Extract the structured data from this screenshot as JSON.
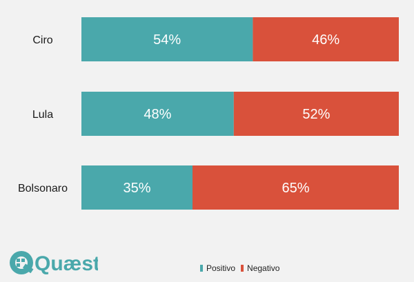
{
  "chart_data": {
    "type": "bar",
    "orientation": "horizontal",
    "stacked": true,
    "categories": [
      "Ciro",
      "Lula",
      "Bolsonaro"
    ],
    "series": [
      {
        "name": "Positivo",
        "values": [
          54,
          48,
          35
        ],
        "color": "#4aa8ab"
      },
      {
        "name": "Negativo",
        "values": [
          46,
          52,
          65
        ],
        "color": "#d9513b"
      }
    ],
    "labels": [
      [
        "54%",
        "48%",
        "35%"
      ],
      [
        "46%",
        "52%",
        "65%"
      ]
    ],
    "xlim": [
      0,
      100
    ],
    "grid": false,
    "legend_position": "bottom"
  },
  "legend": {
    "items": [
      {
        "label": "Positivo",
        "color": "#4aa8ab"
      },
      {
        "label": "Negativo",
        "color": "#d9513b"
      }
    ]
  },
  "logo": {
    "text": "Quæst",
    "color": "#4aa8ab",
    "icon": "quaest-logo-icon"
  },
  "colors": {
    "background": "#f2f2f2",
    "positive": "#4aa8ab",
    "negative": "#d9513b"
  }
}
